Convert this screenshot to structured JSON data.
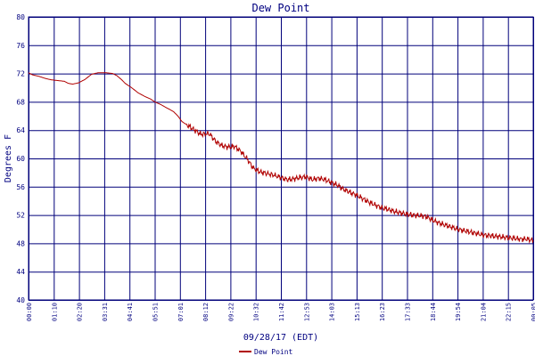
{
  "chart_data": {
    "type": "line",
    "title": "Dew Point",
    "xlabel": "09/28/17 (EDT)",
    "ylabel": "Degrees F",
    "ylim": [
      40,
      80
    ],
    "y_ticks": [
      40,
      44,
      48,
      52,
      56,
      60,
      64,
      68,
      72,
      76,
      80
    ],
    "x_tick_labels": [
      "00:00",
      "01:10",
      "02:20",
      "03:31",
      "04:41",
      "05:51",
      "07:01",
      "08:12",
      "09:22",
      "10:32",
      "11:42",
      "12:53",
      "14:03",
      "15:13",
      "16:23",
      "17:33",
      "18:44",
      "19:54",
      "21:04",
      "22:15",
      "00:05"
    ],
    "grid": true,
    "legend_position": "bottom-center",
    "colors": {
      "series": "#b00000",
      "grid": "#00007a",
      "axis_text": "#000080"
    },
    "series": [
      {
        "name": "Dew Point",
        "points": [
          [
            0,
            72.1
          ],
          [
            0.2,
            71.8
          ],
          [
            0.5,
            71.6
          ],
          [
            0.8,
            71.3
          ],
          [
            1.1,
            71.1
          ],
          [
            1.4,
            71.0
          ],
          [
            1.7,
            70.9
          ],
          [
            1.9,
            70.6
          ],
          [
            2.1,
            70.5
          ],
          [
            2.4,
            70.7
          ],
          [
            2.7,
            71.2
          ],
          [
            3.0,
            71.9
          ],
          [
            3.3,
            72.1
          ],
          [
            3.7,
            72.1
          ],
          [
            4.0,
            72.0
          ],
          [
            4.2,
            71.7
          ],
          [
            4.4,
            71.2
          ],
          [
            4.6,
            70.6
          ],
          [
            4.9,
            70.0
          ],
          [
            5.2,
            69.3
          ],
          [
            5.5,
            68.8
          ],
          [
            5.8,
            68.4
          ],
          [
            6.0,
            68.0
          ],
          [
            6.3,
            67.6
          ],
          [
            6.6,
            67.1
          ],
          [
            6.9,
            66.6
          ],
          [
            7.1,
            66.0
          ],
          [
            7.3,
            65.2
          ],
          [
            7.6,
            64.6
          ],
          [
            7.9,
            64.0
          ],
          [
            8.2,
            63.4
          ],
          [
            8.6,
            63.5
          ],
          [
            8.9,
            62.4
          ],
          [
            9.2,
            61.8
          ],
          [
            9.5,
            61.6
          ],
          [
            9.8,
            61.7
          ],
          [
            10.1,
            61.0
          ],
          [
            10.4,
            59.9
          ],
          [
            10.7,
            58.6
          ],
          [
            11.0,
            58.1
          ],
          [
            11.3,
            57.9
          ],
          [
            11.7,
            57.6
          ],
          [
            12.0,
            57.3
          ],
          [
            12.3,
            57.0
          ],
          [
            12.6,
            57.1
          ],
          [
            12.9,
            57.3
          ],
          [
            13.2,
            57.4
          ],
          [
            13.5,
            57.0
          ],
          [
            13.8,
            57.2
          ],
          [
            14.1,
            57.0
          ],
          [
            14.4,
            56.6
          ],
          [
            14.7,
            56.2
          ],
          [
            15.0,
            55.6
          ],
          [
            15.3,
            55.2
          ],
          [
            15.6,
            54.8
          ],
          [
            15.9,
            54.3
          ],
          [
            16.2,
            53.8
          ],
          [
            16.5,
            53.4
          ],
          [
            16.8,
            53.0
          ],
          [
            17.1,
            52.8
          ],
          [
            17.4,
            52.5
          ],
          [
            17.7,
            52.3
          ],
          [
            18.0,
            52.1
          ],
          [
            18.3,
            52.0
          ],
          [
            18.6,
            51.9
          ],
          [
            18.9,
            51.8
          ],
          [
            19.2,
            51.3
          ],
          [
            19.5,
            50.9
          ],
          [
            19.8,
            50.6
          ],
          [
            20.1,
            50.3
          ],
          [
            20.4,
            50.0
          ],
          [
            20.7,
            49.8
          ],
          [
            21.0,
            49.6
          ],
          [
            21.3,
            49.4
          ],
          [
            21.6,
            49.2
          ],
          [
            21.9,
            49.1
          ],
          [
            22.2,
            49.0
          ],
          [
            22.5,
            48.9
          ],
          [
            22.8,
            48.8
          ],
          [
            23.1,
            48.7
          ],
          [
            23.4,
            48.6
          ],
          [
            23.7,
            48.6
          ],
          [
            24.0,
            48.4
          ]
        ]
      }
    ]
  }
}
